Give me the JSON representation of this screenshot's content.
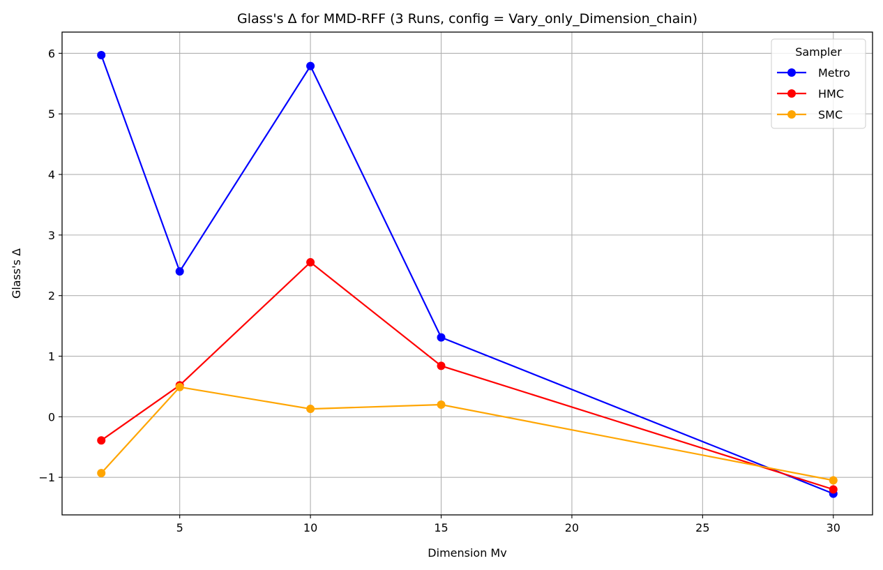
{
  "chart_data": {
    "type": "line",
    "title": "Glass's Δ for MMD-RFF (3 Runs, config = Vary_only_Dimension_chain)",
    "xlabel": "Dimension Mv",
    "ylabel": "Glass's Δ",
    "xlim": [
      0.5,
      31.5
    ],
    "ylim": [
      -1.62,
      6.35
    ],
    "xticks": [
      5,
      10,
      15,
      20,
      25,
      30
    ],
    "yticks": [
      -1,
      0,
      1,
      2,
      3,
      4,
      5,
      6
    ],
    "xtick_labels": [
      "5",
      "10",
      "15",
      "20",
      "25",
      "30"
    ],
    "ytick_labels": [
      "−1",
      "0",
      "1",
      "2",
      "3",
      "4",
      "5",
      "6"
    ],
    "grid": true,
    "legend": {
      "title": "Sampler",
      "position": "top-right"
    },
    "x": [
      2,
      5,
      10,
      15,
      30
    ],
    "series": [
      {
        "name": "Metro",
        "color": "#0000ff",
        "values": [
          5.97,
          2.4,
          5.79,
          1.31,
          -1.27
        ]
      },
      {
        "name": "HMC",
        "color": "#ff0000",
        "values": [
          -0.39,
          0.52,
          2.55,
          0.84,
          -1.2
        ]
      },
      {
        "name": "SMC",
        "color": "#ffa500",
        "values": [
          -0.93,
          0.49,
          0.13,
          0.2,
          -1.05
        ]
      }
    ]
  }
}
